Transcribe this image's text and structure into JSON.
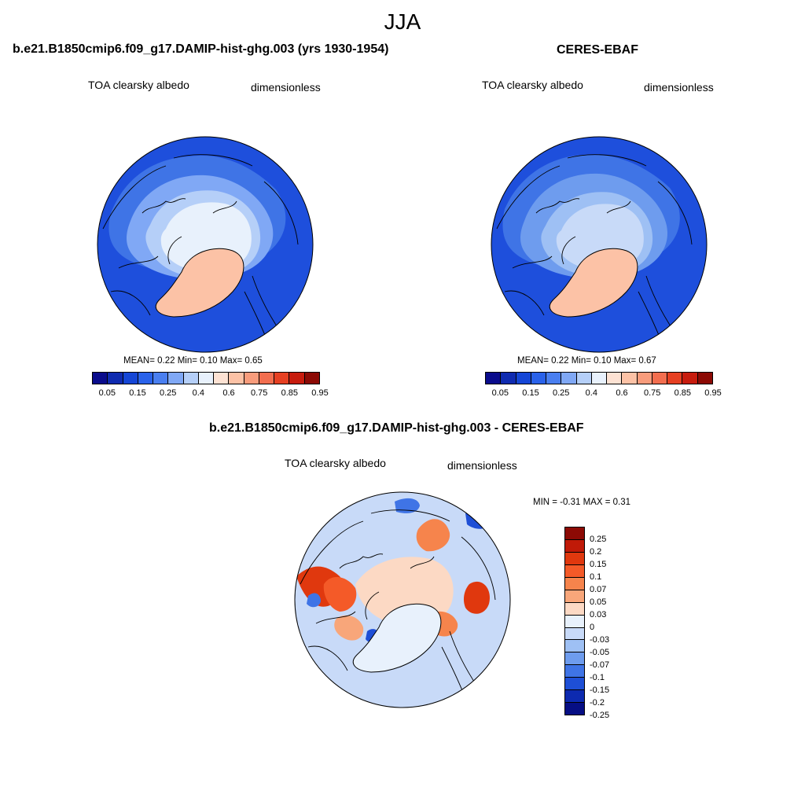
{
  "season": "JJA",
  "panels": [
    {
      "title": "b.e21.B1850cmip6.f09_g17.DAMIP-hist-ghg.003 (yrs 1930-1954)",
      "variable": "TOA clearsky albedo",
      "units": "dimensionless",
      "stats": "MEAN=   0.22  Min=    0.10  Max=    0.65"
    },
    {
      "title": "CERES-EBAF",
      "variable": "TOA clearsky albedo",
      "units": "dimensionless",
      "stats": "MEAN=   0.22  Min=    0.10  Max=    0.67"
    },
    {
      "title": "b.e21.B1850cmip6.f09_g17.DAMIP-hist-ghg.003 - CERES-EBAF",
      "variable": "TOA clearsky albedo",
      "units": "dimensionless",
      "stats": "MIN =  -0.31 MAX =   0.31"
    }
  ],
  "albedo_colorbar": {
    "colors": [
      "#0a0c8c",
      "#0f2bb0",
      "#1546d6",
      "#2a62ea",
      "#4a7ff0",
      "#80a8f5",
      "#b5cff8",
      "#e8f1fc",
      "#fde2d3",
      "#fcc2a6",
      "#f89c7c",
      "#f26e4f",
      "#e64022",
      "#c71c0e",
      "#8c0a05"
    ],
    "tick_labels": [
      "0.05",
      "0.15",
      "0.25",
      "0.4",
      "0.6",
      "0.75",
      "0.85",
      "0.95"
    ]
  },
  "diff_colorbar": {
    "colors": [
      "#8c0a05",
      "#c01a08",
      "#e0380e",
      "#f45a28",
      "#f6844c",
      "#f8a67a",
      "#fcd9c4",
      "#e8f1fc",
      "#c8daf8",
      "#9ec0f4",
      "#6e9cee",
      "#3f74e6",
      "#1e4fd6",
      "#0d2ab0",
      "#060e84"
    ],
    "tick_labels": [
      "0.25",
      "0.2",
      "0.15",
      "0.1",
      "0.07",
      "0.05",
      "0.03",
      "0",
      "-0.03",
      "-0.05",
      "-0.07",
      "-0.1",
      "-0.15",
      "-0.2",
      "-0.25"
    ]
  },
  "colors": {
    "ocean": "#2a62ea",
    "ice_core": "#e8f1fc",
    "greenland": "#fcc2a6"
  }
}
